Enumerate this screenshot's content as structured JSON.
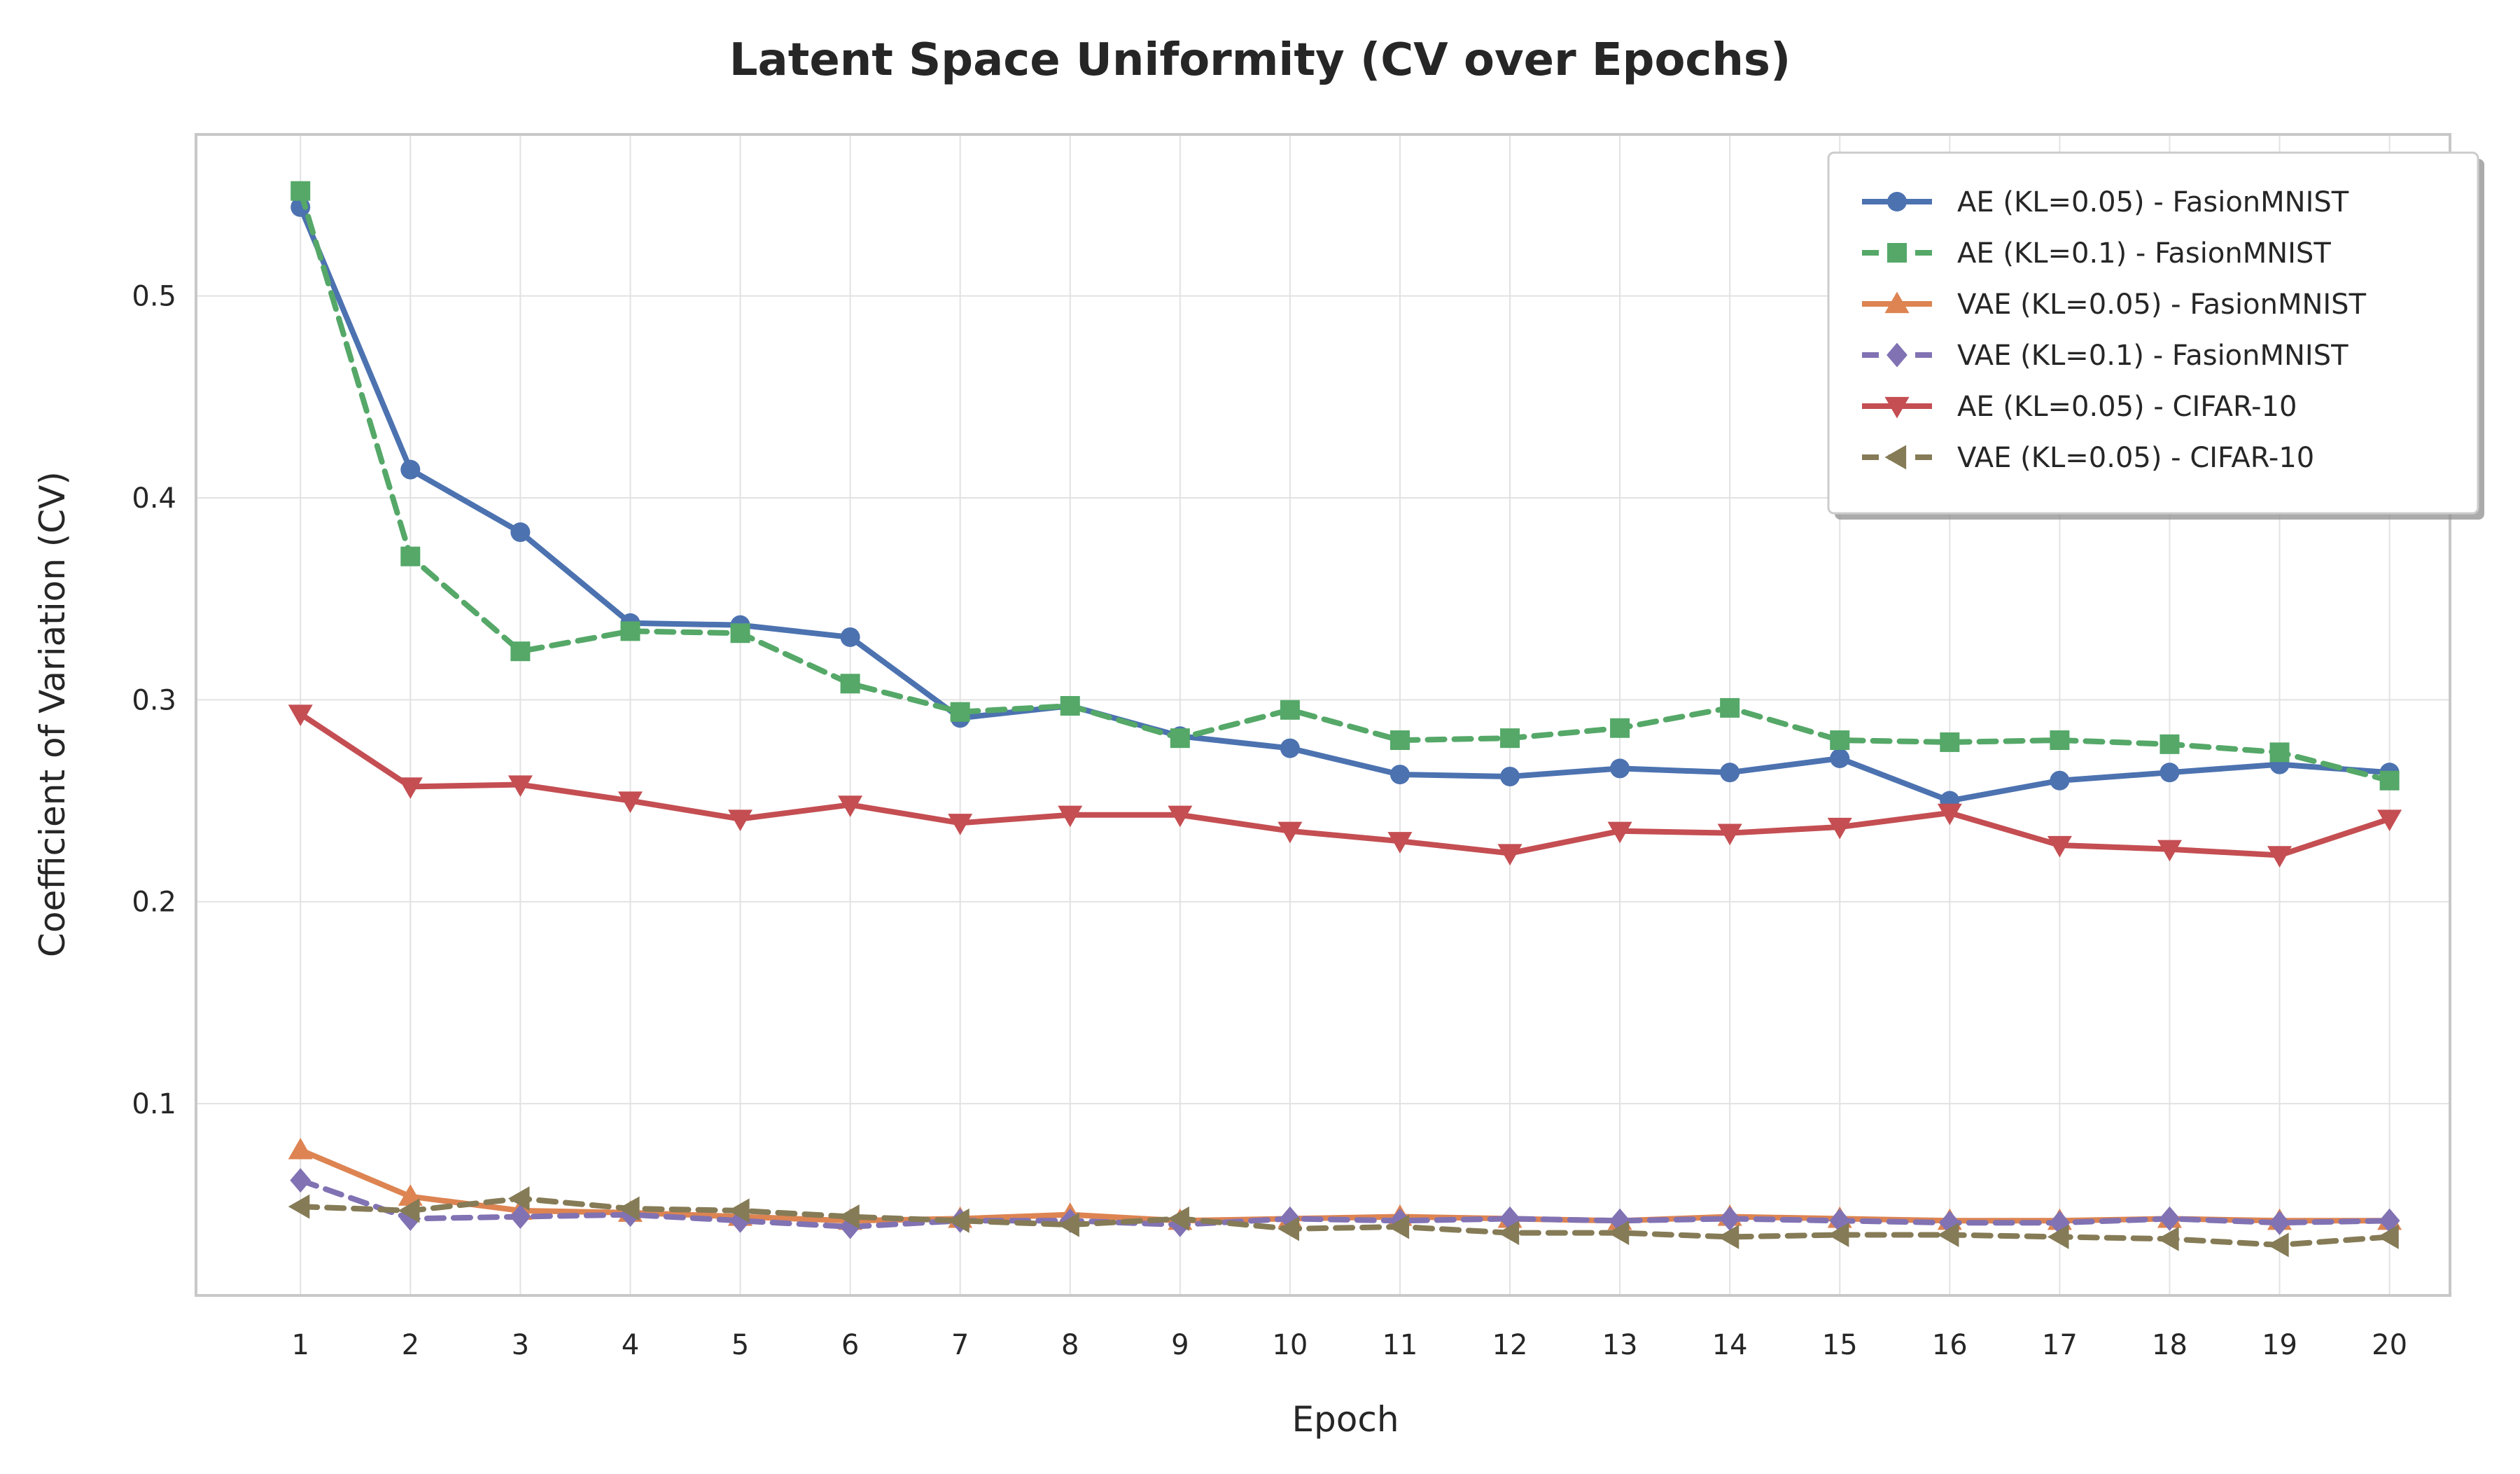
{
  "chart_data": {
    "type": "line",
    "title": "Latent Space Uniformity (CV over Epochs)",
    "xlabel": "Epoch",
    "ylabel": "Coefficient of Variation (CV)",
    "x": [
      1,
      2,
      3,
      4,
      5,
      6,
      7,
      8,
      9,
      10,
      11,
      12,
      13,
      14,
      15,
      16,
      17,
      18,
      19,
      20
    ],
    "x_ticks": [
      "1",
      "2",
      "3",
      "4",
      "5",
      "6",
      "7",
      "8",
      "9",
      "10",
      "11",
      "12",
      "13",
      "14",
      "15",
      "16",
      "17",
      "18",
      "19",
      "20"
    ],
    "y_ticks": [
      {
        "value": 0.1,
        "label": "0.1"
      },
      {
        "value": 0.2,
        "label": "0.2"
      },
      {
        "value": 0.3,
        "label": "0.3"
      },
      {
        "value": 0.4,
        "label": "0.4"
      },
      {
        "value": 0.5,
        "label": "0.5"
      }
    ],
    "xlim": [
      0.05,
      20.55
    ],
    "ylim": [
      0.005,
      0.58
    ],
    "grid": true,
    "legend_position": "top-right",
    "series": [
      {
        "name": "AE (KL=0.05) - FasionMNIST",
        "color": "#4C72B0",
        "dashed": false,
        "marker": "circle",
        "values": [
          0.544,
          0.414,
          0.383,
          0.338,
          0.337,
          0.331,
          0.291,
          0.297,
          0.282,
          0.276,
          0.263,
          0.262,
          0.266,
          0.264,
          0.271,
          0.25,
          0.26,
          0.264,
          0.268,
          0.264
        ]
      },
      {
        "name": "AE (KL=0.1) - FasionMNIST",
        "color": "#55A868",
        "dashed": true,
        "marker": "square",
        "values": [
          0.552,
          0.371,
          0.324,
          0.334,
          0.333,
          0.308,
          0.294,
          0.297,
          0.281,
          0.295,
          0.28,
          0.281,
          0.286,
          0.296,
          0.28,
          0.279,
          0.28,
          0.278,
          0.274,
          0.26
        ]
      },
      {
        "name": "VAE (KL=0.05) - FasionMNIST",
        "color": "#DD8452",
        "dashed": false,
        "marker": "triangle-up",
        "values": [
          0.077,
          0.054,
          0.047,
          0.046,
          0.044,
          0.042,
          0.043,
          0.045,
          0.042,
          0.043,
          0.044,
          0.043,
          0.042,
          0.044,
          0.043,
          0.042,
          0.042,
          0.043,
          0.042,
          0.042
        ]
      },
      {
        "name": "VAE (KL=0.1) - FasionMNIST",
        "color": "#8172B3",
        "dashed": true,
        "marker": "diamond",
        "values": [
          0.062,
          0.043,
          0.044,
          0.045,
          0.042,
          0.039,
          0.042,
          0.042,
          0.04,
          0.043,
          0.042,
          0.043,
          0.042,
          0.043,
          0.042,
          0.041,
          0.041,
          0.043,
          0.041,
          0.042
        ]
      },
      {
        "name": "AE (KL=0.05) - CIFAR-10",
        "color": "#C44E52",
        "dashed": false,
        "marker": "triangle-down",
        "values": [
          0.293,
          0.257,
          0.258,
          0.25,
          0.241,
          0.248,
          0.239,
          0.243,
          0.243,
          0.235,
          0.23,
          0.224,
          0.235,
          0.234,
          0.237,
          0.244,
          0.228,
          0.226,
          0.223,
          0.241
        ]
      },
      {
        "name": "VAE (KL=0.05) - CIFAR-10",
        "color": "#857B56",
        "dashed": true,
        "marker": "triangle-left",
        "values": [
          0.049,
          0.047,
          0.053,
          0.048,
          0.047,
          0.044,
          0.042,
          0.04,
          0.043,
          0.038,
          0.039,
          0.036,
          0.036,
          0.034,
          0.035,
          0.035,
          0.034,
          0.033,
          0.03,
          0.034
        ]
      }
    ]
  }
}
